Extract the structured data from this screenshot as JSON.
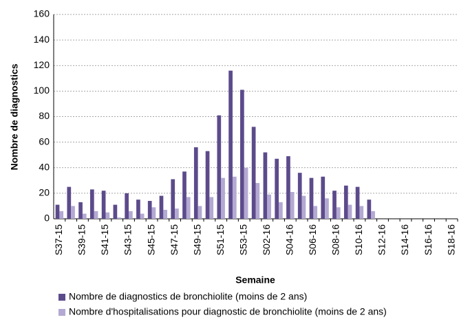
{
  "chart_data": {
    "type": "bar",
    "x_label": "Semaine",
    "y_label": "Nombre de diagnostics",
    "categories": [
      "S37-15",
      null,
      "S39-15",
      null,
      "S41-15",
      null,
      "S43-15",
      null,
      "S45-15",
      null,
      "S47-15",
      null,
      "S49-15",
      null,
      "S51-15",
      null,
      "S53-15",
      null,
      "S02-16",
      null,
      "S04-16",
      null,
      "S06-16",
      null,
      "S08-16",
      null,
      "S10-16",
      null,
      "S12-16",
      null,
      "S14-16",
      null,
      "S16-16",
      null,
      "S18-16"
    ],
    "series": [
      {
        "name": "Nombre de diagnostics de bronchiolite (moins de 2 ans)",
        "color": "#5c4b8b",
        "values": [
          11,
          25,
          13,
          23,
          22,
          11,
          20,
          15,
          14,
          18,
          31,
          37,
          56,
          53,
          81,
          116,
          101,
          72,
          52,
          47,
          49,
          36,
          32,
          33,
          22,
          26,
          25,
          15,
          0,
          0,
          0,
          0,
          0,
          0,
          0
        ]
      },
      {
        "name": "Nombre d'hospitalisations pour diagnostic de bronchiolite (moins de 2 ans)",
        "color": "#b3a9d2",
        "values": [
          6,
          10,
          4,
          6,
          5,
          1,
          6,
          4,
          9,
          7,
          8,
          17,
          10,
          17,
          32,
          33,
          40,
          28,
          19,
          13,
          21,
          18,
          10,
          16,
          9,
          11,
          10,
          6,
          0,
          0,
          0,
          0,
          0,
          0,
          0
        ]
      }
    ],
    "ylim": [
      0,
      160
    ],
    "yticks": [
      0,
      20,
      40,
      60,
      80,
      100,
      120,
      140,
      160
    ],
    "grid": true
  }
}
